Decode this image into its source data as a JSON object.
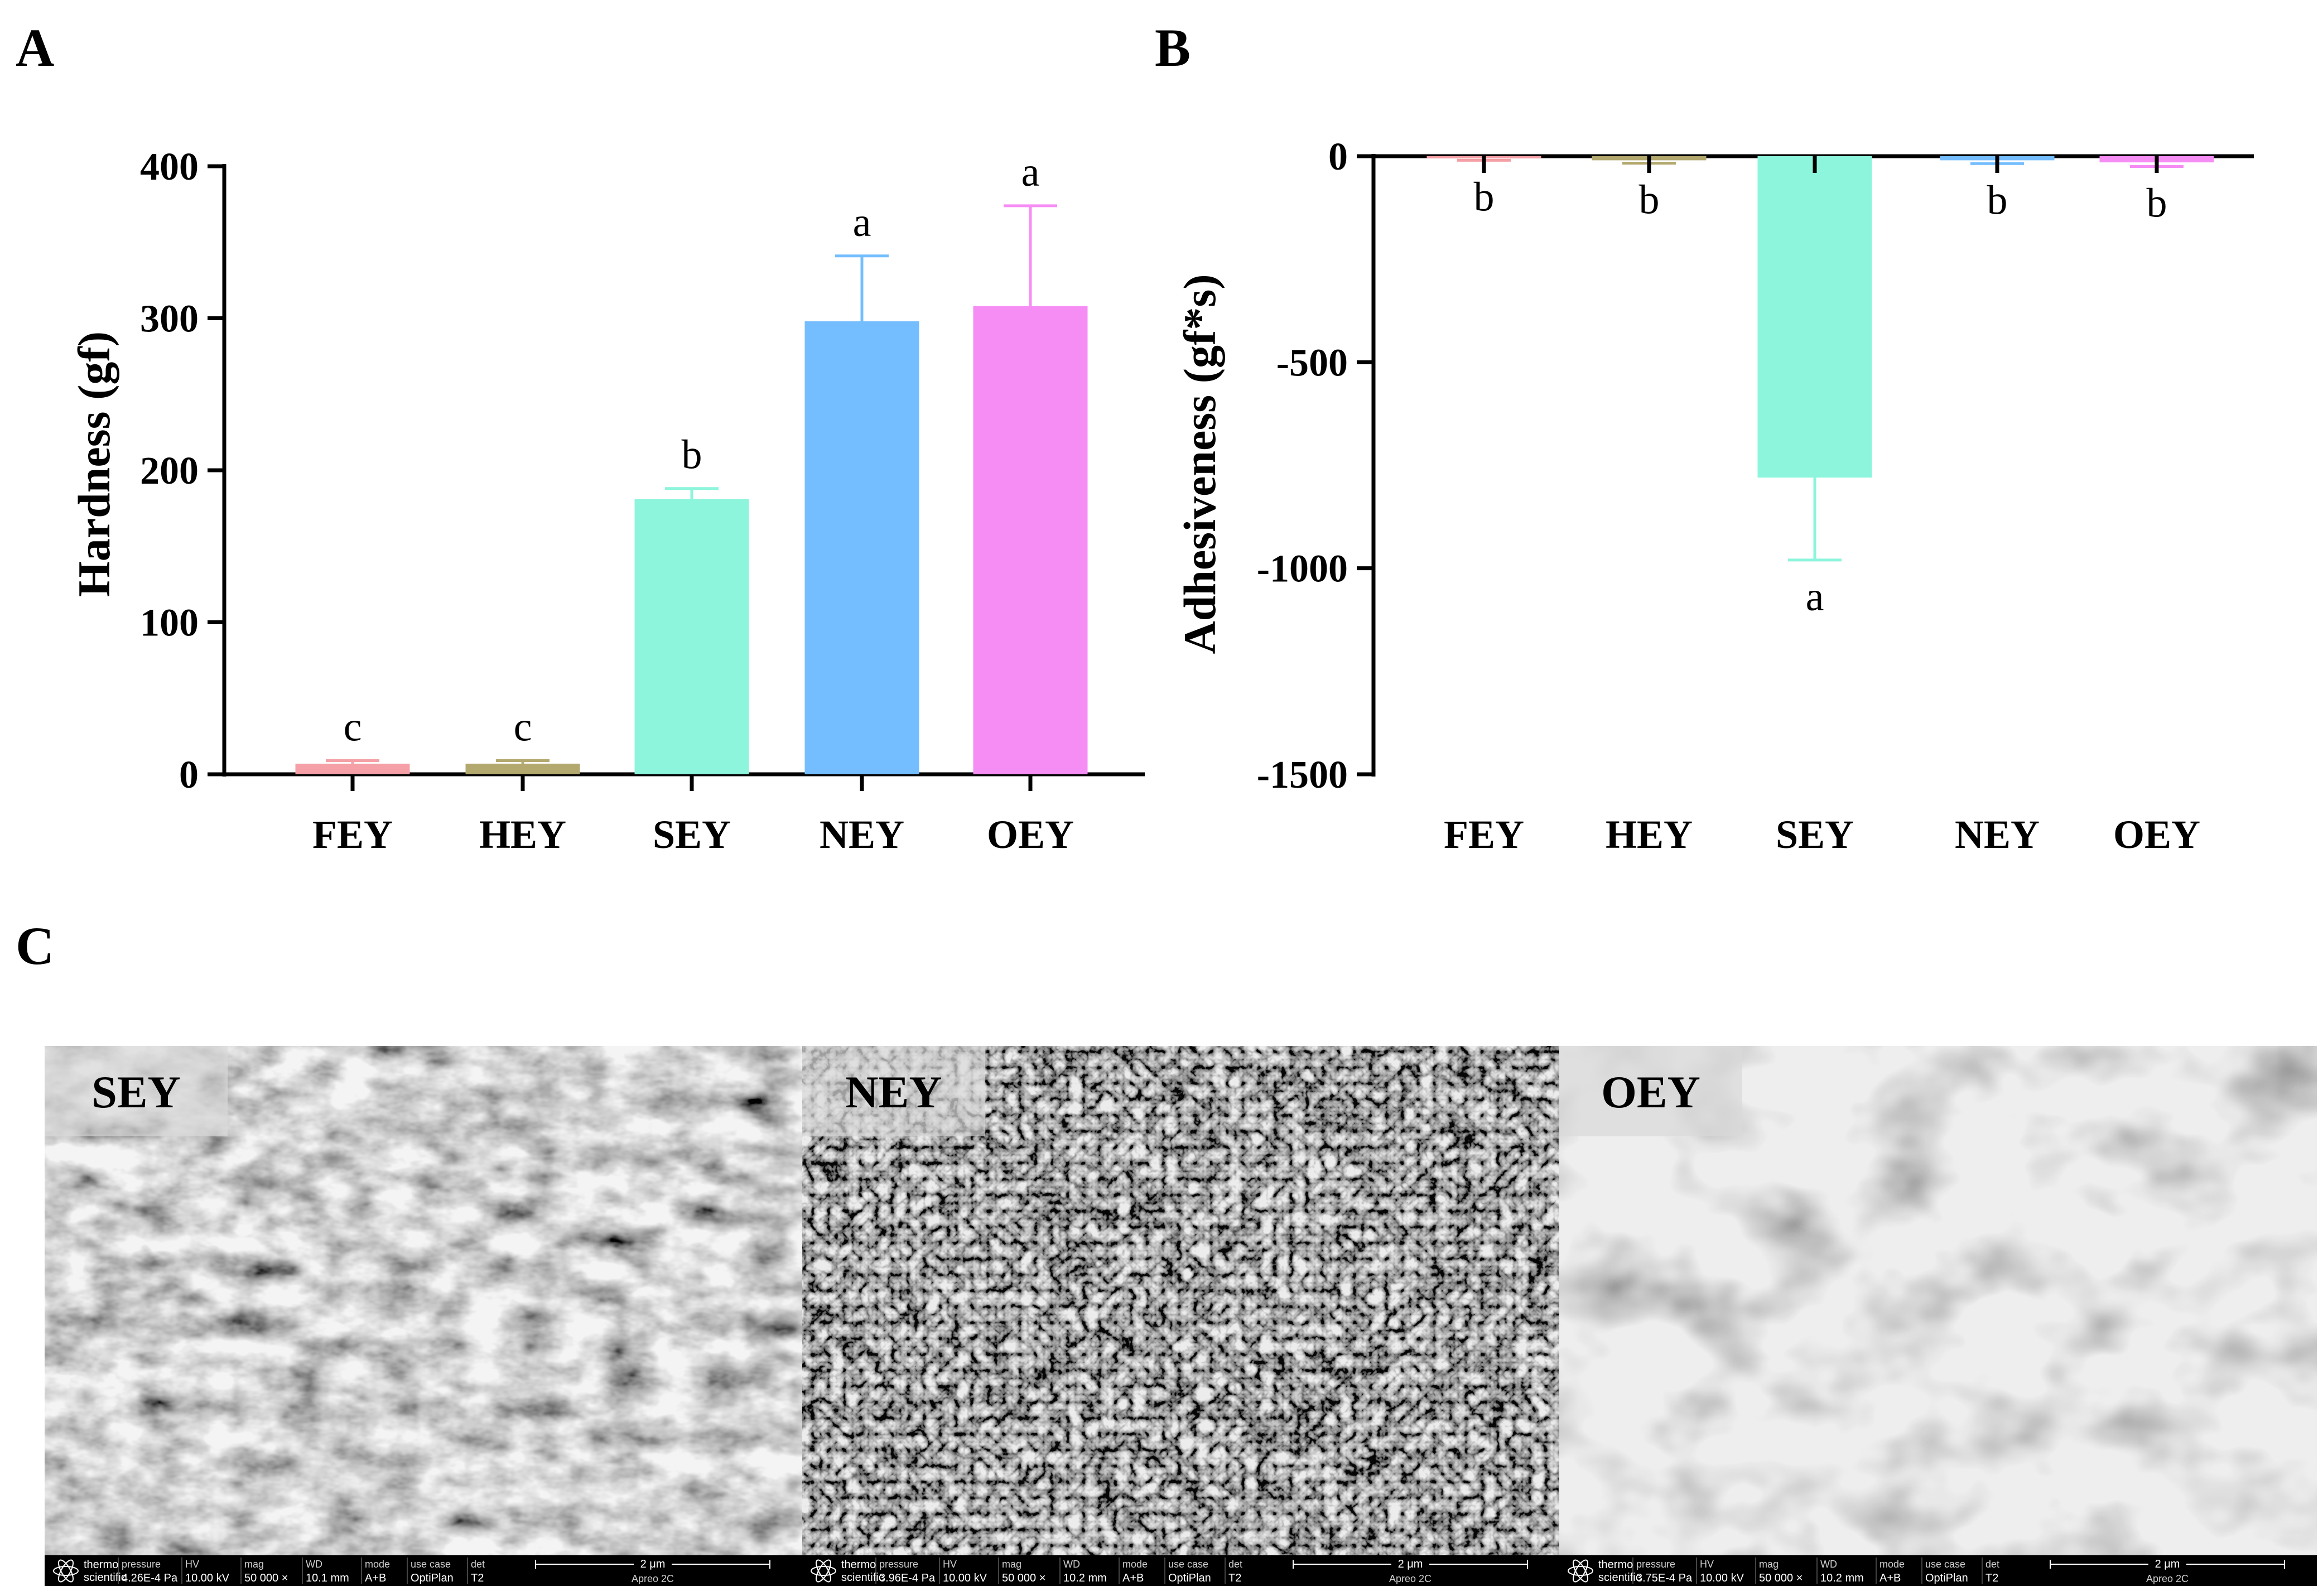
{
  "panels": {
    "a": {
      "letter": "A"
    },
    "b": {
      "letter": "B"
    },
    "c": {
      "letter": "C"
    }
  },
  "chart_data": [
    {
      "id": "A",
      "type": "bar",
      "categories": [
        "FEY",
        "HEY",
        "SEY",
        "NEY",
        "OEY"
      ],
      "values": [
        7,
        7,
        181,
        298,
        308
      ],
      "errors": [
        2,
        2,
        7,
        43,
        66
      ],
      "significance": [
        "c",
        "c",
        "b",
        "a",
        "a"
      ],
      "colors": [
        "#f4a0a6",
        "#b3a86e",
        "#8cf5dc",
        "#74beff",
        "#f68df5"
      ],
      "ylabel": "Hardness (gf)",
      "xlabel": "",
      "ylim": [
        0,
        400
      ],
      "yticks": [
        0,
        100,
        200,
        300,
        400
      ],
      "ytick_labels": [
        "0",
        "100",
        "200",
        "300",
        "400"
      ]
    },
    {
      "id": "B",
      "type": "bar",
      "categories": [
        "FEY",
        "HEY",
        "SEY",
        "NEY",
        "OEY"
      ],
      "values": [
        -5,
        -10,
        -780,
        -10,
        -15
      ],
      "errors": [
        5,
        7,
        200,
        8,
        10
      ],
      "significance": [
        "b",
        "b",
        "a",
        "b",
        "b"
      ],
      "colors": [
        "#f4a0a6",
        "#b3a86e",
        "#8cf5dc",
        "#74beff",
        "#f68df5"
      ],
      "ylabel": "Adhesiveness (gf*s)",
      "xlabel": "",
      "ylim": [
        -1500,
        0
      ],
      "yticks": [
        0,
        -500,
        -1000,
        -1500
      ],
      "ytick_labels": [
        "0",
        "-500",
        "-1000",
        "-1500"
      ]
    }
  ],
  "sem_images": [
    {
      "label": "SEY",
      "pressure": "4.26E-4 Pa",
      "hv": "10.00 kV",
      "mag": "50 000 ×",
      "wd": "10.1 mm",
      "mode": "A+B",
      "use_case": "OptiPlan",
      "det": "T2",
      "scale": "2 μm",
      "instrument": "Apreo 2C"
    },
    {
      "label": "NEY",
      "pressure": "3.96E-4 Pa",
      "hv": "10.00 kV",
      "mag": "50 000 ×",
      "wd": "10.2 mm",
      "mode": "A+B",
      "use_case": "OptiPlan",
      "det": "T2",
      "scale": "2 μm",
      "instrument": "Apreo 2C"
    },
    {
      "label": "OEY",
      "pressure": "3.75E-4 Pa",
      "hv": "10.00 kV",
      "mag": "50 000 ×",
      "wd": "10.2 mm",
      "mode": "A+B",
      "use_case": "OptiPlan",
      "det": "T2",
      "scale": "2 μm",
      "instrument": "Apreo 2C"
    }
  ],
  "sem_bar_labels": {
    "brand_line1": "thermo",
    "brand_line2": "scientific",
    "pressure": "pressure",
    "hv": "HV",
    "mag": "mag",
    "wd": "WD",
    "mode": "mode",
    "use_case": "use case",
    "det": "det"
  }
}
